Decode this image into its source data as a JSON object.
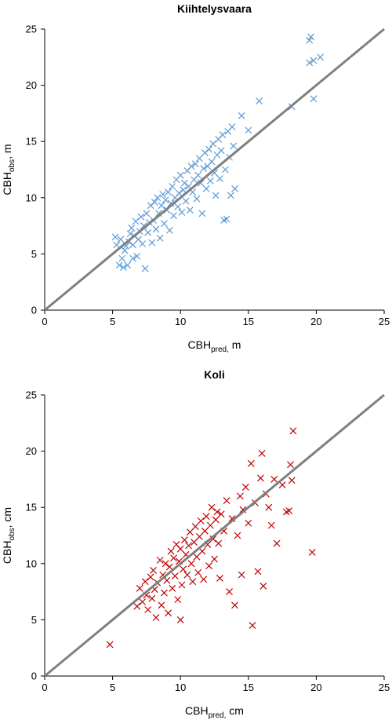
{
  "chart_data": [
    {
      "type": "scatter",
      "title": "Kiihtelysvaara",
      "xlabel": {
        "base": "CBH",
        "sub": "pred,",
        "unit": " m"
      },
      "ylabel": {
        "base": "CBH",
        "sub": "obs",
        "unit": ", m"
      },
      "xlim": [
        0,
        25
      ],
      "ylim": [
        0,
        25
      ],
      "xticks": [
        "0",
        "5",
        "10",
        "15",
        "20",
        "25"
      ],
      "yticks": [
        "0",
        "5",
        "10",
        "15",
        "20",
        "25"
      ],
      "grid": false,
      "marker": "x",
      "marker_color": "#5b9bd5",
      "reference_line": {
        "x": [
          0,
          25
        ],
        "y": [
          0,
          25
        ],
        "color": "#808080"
      },
      "points": [
        [
          5.2,
          6.5
        ],
        [
          5.3,
          5.8
        ],
        [
          5.5,
          4.0
        ],
        [
          5.6,
          6.3
        ],
        [
          5.7,
          4.6
        ],
        [
          5.8,
          3.8
        ],
        [
          5.9,
          5.3
        ],
        [
          6.0,
          5.7
        ],
        [
          6.1,
          4.0
        ],
        [
          6.2,
          6.1
        ],
        [
          6.3,
          6.8
        ],
        [
          6.4,
          7.3
        ],
        [
          6.5,
          4.6
        ],
        [
          6.5,
          5.8
        ],
        [
          6.6,
          6.6
        ],
        [
          6.7,
          7.9
        ],
        [
          6.8,
          4.8
        ],
        [
          6.9,
          6.3
        ],
        [
          7.0,
          7.0
        ],
        [
          7.1,
          8.3
        ],
        [
          7.2,
          5.9
        ],
        [
          7.3,
          7.5
        ],
        [
          7.4,
          3.7
        ],
        [
          7.5,
          8.6
        ],
        [
          7.6,
          6.9
        ],
        [
          7.7,
          7.8
        ],
        [
          7.8,
          9.3
        ],
        [
          7.9,
          6.0
        ],
        [
          8.0,
          8.0
        ],
        [
          8.1,
          9.6
        ],
        [
          8.2,
          7.2
        ],
        [
          8.3,
          10.0
        ],
        [
          8.4,
          8.6
        ],
        [
          8.5,
          6.4
        ],
        [
          8.6,
          9.3
        ],
        [
          8.7,
          10.3
        ],
        [
          8.8,
          7.7
        ],
        [
          8.9,
          9.8
        ],
        [
          9.0,
          8.9
        ],
        [
          9.1,
          10.5
        ],
        [
          9.2,
          7.1
        ],
        [
          9.3,
          9.5
        ],
        [
          9.4,
          11.0
        ],
        [
          9.5,
          8.4
        ],
        [
          9.6,
          10.0
        ],
        [
          9.7,
          11.6
        ],
        [
          9.8,
          9.2
        ],
        [
          9.9,
          10.4
        ],
        [
          10.0,
          12.0
        ],
        [
          10.1,
          8.7
        ],
        [
          10.2,
          10.7
        ],
        [
          10.3,
          11.3
        ],
        [
          10.4,
          9.7
        ],
        [
          10.5,
          12.4
        ],
        [
          10.6,
          11.0
        ],
        [
          10.7,
          8.9
        ],
        [
          10.8,
          12.8
        ],
        [
          10.9,
          10.5
        ],
        [
          11.0,
          11.6
        ],
        [
          11.1,
          13.0
        ],
        [
          11.2,
          9.9
        ],
        [
          11.3,
          12.0
        ],
        [
          11.4,
          13.5
        ],
        [
          11.5,
          11.3
        ],
        [
          11.6,
          8.6
        ],
        [
          11.7,
          12.6
        ],
        [
          11.8,
          14.0
        ],
        [
          11.9,
          10.8
        ],
        [
          12.0,
          12.8
        ],
        [
          12.1,
          14.3
        ],
        [
          12.2,
          11.5
        ],
        [
          12.3,
          13.2
        ],
        [
          12.4,
          14.8
        ],
        [
          12.5,
          12.2
        ],
        [
          12.6,
          10.2
        ],
        [
          12.7,
          13.8
        ],
        [
          12.8,
          15.2
        ],
        [
          12.9,
          11.7
        ],
        [
          13.0,
          14.2
        ],
        [
          13.1,
          15.6
        ],
        [
          13.2,
          8.0
        ],
        [
          13.3,
          12.5
        ],
        [
          13.4,
          8.1
        ],
        [
          13.5,
          15.9
        ],
        [
          13.6,
          13.6
        ],
        [
          13.7,
          10.2
        ],
        [
          13.8,
          16.3
        ],
        [
          13.9,
          14.6
        ],
        [
          14.0,
          10.8
        ],
        [
          14.5,
          17.3
        ],
        [
          15.0,
          16.0
        ],
        [
          15.8,
          18.6
        ],
        [
          18.2,
          18.1
        ],
        [
          19.5,
          24.0
        ],
        [
          19.6,
          24.3
        ],
        [
          19.5,
          22.0
        ],
        [
          19.8,
          22.2
        ],
        [
          20.3,
          22.5
        ],
        [
          19.8,
          18.8
        ]
      ]
    },
    {
      "type": "scatter",
      "title": "Koli",
      "xlabel": {
        "base": "CBH",
        "sub": "pred,",
        "unit": " cm"
      },
      "ylabel": {
        "base": "CBH",
        "sub": "obs",
        "unit": ", cm"
      },
      "xlim": [
        0,
        25
      ],
      "ylim": [
        0,
        25
      ],
      "xticks": [
        "0",
        "5",
        "10",
        "15",
        "20",
        "25"
      ],
      "yticks": [
        "0",
        "5",
        "10",
        "15",
        "20",
        "25"
      ],
      "grid": false,
      "marker": "x",
      "marker_color": "#c00000",
      "reference_line": {
        "x": [
          0,
          25
        ],
        "y": [
          0,
          25
        ],
        "color": "#808080"
      },
      "points": [
        [
          4.8,
          2.8
        ],
        [
          6.8,
          6.2
        ],
        [
          7.0,
          7.8
        ],
        [
          7.2,
          6.6
        ],
        [
          7.4,
          8.4
        ],
        [
          7.5,
          7.2
        ],
        [
          7.6,
          5.9
        ],
        [
          7.8,
          8.8
        ],
        [
          7.9,
          6.9
        ],
        [
          8.0,
          9.4
        ],
        [
          8.1,
          7.7
        ],
        [
          8.2,
          5.2
        ],
        [
          8.3,
          8.3
        ],
        [
          8.5,
          10.3
        ],
        [
          8.6,
          6.3
        ],
        [
          8.7,
          9.0
        ],
        [
          8.8,
          7.4
        ],
        [
          8.9,
          10.0
        ],
        [
          9.0,
          8.5
        ],
        [
          9.1,
          5.6
        ],
        [
          9.2,
          9.7
        ],
        [
          9.3,
          11.1
        ],
        [
          9.4,
          7.8
        ],
        [
          9.5,
          10.5
        ],
        [
          9.6,
          8.9
        ],
        [
          9.7,
          11.7
        ],
        [
          9.8,
          6.8
        ],
        [
          9.9,
          10.2
        ],
        [
          10.0,
          5.0
        ],
        [
          10.0,
          11.3
        ],
        [
          10.1,
          8.1
        ],
        [
          10.2,
          9.5
        ],
        [
          10.3,
          12.1
        ],
        [
          10.4,
          10.8
        ],
        [
          10.5,
          9.0
        ],
        [
          10.6,
          11.6
        ],
        [
          10.7,
          12.8
        ],
        [
          10.8,
          10.0
        ],
        [
          10.9,
          8.4
        ],
        [
          11.0,
          11.9
        ],
        [
          11.1,
          13.3
        ],
        [
          11.2,
          10.6
        ],
        [
          11.3,
          9.2
        ],
        [
          11.4,
          12.4
        ],
        [
          11.5,
          13.8
        ],
        [
          11.6,
          11.1
        ],
        [
          11.7,
          8.6
        ],
        [
          11.8,
          12.9
        ],
        [
          11.9,
          14.2
        ],
        [
          12.0,
          11.7
        ],
        [
          12.1,
          9.8
        ],
        [
          12.2,
          13.4
        ],
        [
          12.3,
          15.0
        ],
        [
          12.4,
          12.2
        ],
        [
          12.5,
          10.4
        ],
        [
          12.6,
          13.9
        ],
        [
          12.7,
          14.6
        ],
        [
          12.8,
          11.8
        ],
        [
          12.9,
          8.7
        ],
        [
          13.0,
          14.4
        ],
        [
          13.2,
          12.9
        ],
        [
          13.4,
          15.6
        ],
        [
          13.6,
          7.5
        ],
        [
          13.8,
          14.0
        ],
        [
          14.0,
          6.3
        ],
        [
          14.2,
          12.5
        ],
        [
          14.4,
          16.0
        ],
        [
          14.5,
          9.0
        ],
        [
          14.6,
          14.8
        ],
        [
          14.8,
          16.8
        ],
        [
          15.0,
          13.6
        ],
        [
          15.2,
          18.9
        ],
        [
          15.3,
          4.5
        ],
        [
          15.5,
          15.4
        ],
        [
          15.7,
          9.3
        ],
        [
          15.9,
          17.6
        ],
        [
          16.0,
          19.8
        ],
        [
          16.1,
          8.0
        ],
        [
          16.3,
          16.2
        ],
        [
          16.5,
          15.0
        ],
        [
          16.7,
          13.4
        ],
        [
          16.9,
          17.5
        ],
        [
          17.1,
          11.8
        ],
        [
          17.5,
          17.0
        ],
        [
          17.8,
          14.6
        ],
        [
          18.0,
          14.7
        ],
        [
          18.1,
          18.8
        ],
        [
          18.2,
          17.4
        ],
        [
          18.3,
          21.8
        ],
        [
          19.7,
          11.0
        ]
      ]
    }
  ]
}
